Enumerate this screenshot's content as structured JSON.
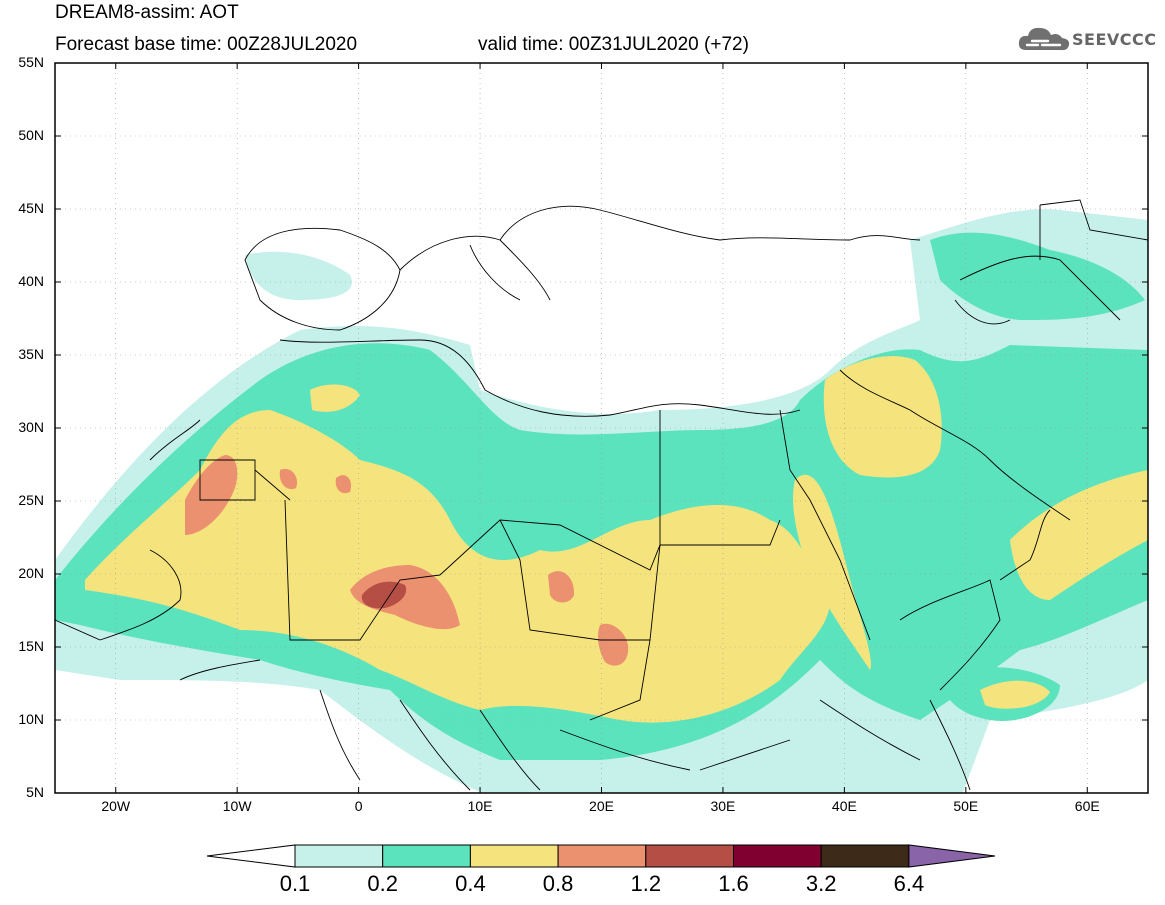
{
  "header": {
    "title": "DREAM8-assim: AOT",
    "base_time": "Forecast base time: 00Z28JUL2020",
    "valid_time": "valid time: 00Z31JUL2020 (+72)"
  },
  "logo": {
    "text": "SEEVCCC",
    "icon": "cloud-icon"
  },
  "map": {
    "lat_range": [
      5,
      55
    ],
    "lon_range": [
      -25,
      65
    ],
    "lat_labels": [
      "55N",
      "50N",
      "45N",
      "40N",
      "35N",
      "30N",
      "25N",
      "20N",
      "15N",
      "10N",
      "5N"
    ],
    "lon_labels": [
      "20W",
      "10W",
      "0",
      "10E",
      "20E",
      "30E",
      "40E",
      "50E",
      "60E"
    ],
    "grid": "dotted"
  },
  "colorbar": {
    "labels": [
      "0.1",
      "0.2",
      "0.4",
      "0.8",
      "1.2",
      "1.6",
      "3.2",
      "6.4"
    ],
    "colors": [
      "#c6f0ea",
      "#5be3bd",
      "#f5e47e",
      "#ec9170",
      "#b54e44",
      "#800030",
      "#3d2a18",
      "#8a64a8"
    ],
    "under_color": "#ffffff"
  },
  "colors": {
    "land_background": "#ffffff",
    "border": "#000000"
  }
}
